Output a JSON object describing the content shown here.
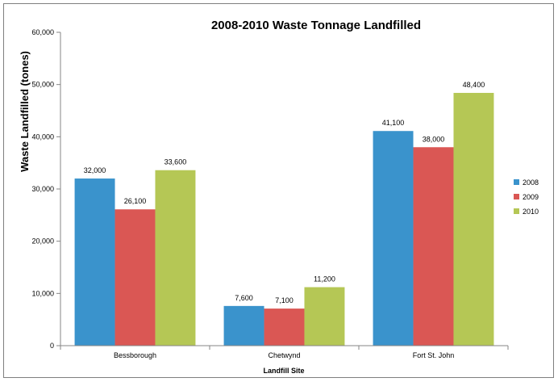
{
  "chart_data": {
    "type": "bar",
    "title": "2008-2010 Waste Tonnage Landfilled",
    "xlabel": "Landfill Site",
    "ylabel": "Waste Landfilled  (tones)",
    "categories": [
      "Bessborough",
      "Chetwynd",
      "Fort St. John"
    ],
    "series": [
      {
        "name": "2008",
        "color": "#3a93cc",
        "values": [
          32000,
          7600,
          41100
        ],
        "labels": [
          "32,000",
          "7,600",
          "41,100"
        ]
      },
      {
        "name": "2009",
        "color": "#da5754",
        "values": [
          26100,
          7100,
          38000
        ],
        "labels": [
          "26,100",
          "7,100",
          "38,000"
        ]
      },
      {
        "name": "2010",
        "color": "#b5c755",
        "values": [
          33600,
          11200,
          48400
        ],
        "labels": [
          "33,600",
          "11,200",
          "48,400"
        ]
      }
    ],
    "ylim": [
      0,
      60000
    ],
    "yticks": [
      0,
      10000,
      20000,
      30000,
      40000,
      50000,
      60000
    ],
    "ytick_labels": [
      "0",
      "10,000",
      "20,000",
      "30,000",
      "40,000",
      "50,000",
      "60,000"
    ],
    "grid": false,
    "legend_position": "right"
  }
}
